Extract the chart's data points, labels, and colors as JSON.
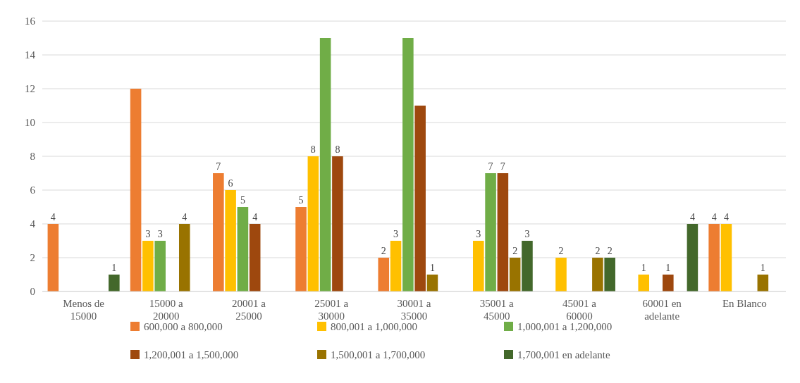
{
  "chart_data": {
    "type": "bar",
    "categories": [
      "Menos de 15000",
      "15000 a 20000",
      "20001 a 25000",
      "25001 a 30000",
      "30001 a 35000",
      "35001 a 45000",
      "45001 a 60000",
      "60001 en adelante",
      "En Blanco"
    ],
    "series": [
      {
        "name": "600,000 a 800,000",
        "color": "#ed7d31",
        "values": [
          4,
          12,
          7,
          5,
          2,
          null,
          null,
          null,
          4
        ],
        "value_labels": [
          "4",
          null,
          "7",
          "5",
          "2",
          null,
          null,
          null,
          "4"
        ]
      },
      {
        "name": "800,001 a 1,000,000",
        "color": "#ffc000",
        "values": [
          null,
          3,
          6,
          8,
          3,
          3,
          2,
          1,
          4
        ],
        "value_labels": [
          null,
          "3",
          "6",
          "8",
          "3",
          "3",
          "2",
          "1",
          "4"
        ]
      },
      {
        "name": "1,000,001 a 1,200,000",
        "color": "#70ad47",
        "values": [
          null,
          3,
          5,
          15,
          15,
          7,
          null,
          null,
          null
        ],
        "value_labels": [
          null,
          "3",
          "5",
          null,
          null,
          "7",
          null,
          null,
          null
        ]
      },
      {
        "name": "1,200,001 a 1,500,000",
        "color": "#9e480e",
        "values": [
          null,
          null,
          4,
          8,
          11,
          7,
          null,
          1,
          null
        ],
        "value_labels": [
          null,
          null,
          "4",
          "8",
          null,
          "7",
          null,
          "1",
          null
        ]
      },
      {
        "name": "1,500,001 a 1,700,000",
        "color": "#997300",
        "values": [
          null,
          4,
          null,
          null,
          1,
          2,
          2,
          null,
          1
        ],
        "value_labels": [
          null,
          "4",
          null,
          null,
          "1",
          "2",
          "2",
          null,
          "1"
        ]
      },
      {
        "name": "1,700,001 en adelante",
        "color": "#43682b",
        "values": [
          1,
          null,
          null,
          null,
          null,
          3,
          2,
          4,
          null
        ],
        "value_labels": [
          "1",
          null,
          null,
          null,
          null,
          "3",
          "2",
          "4",
          null
        ]
      }
    ],
    "ylim": [
      0,
      16
    ],
    "yticks": [
      0,
      2,
      4,
      6,
      8,
      10,
      12,
      14,
      16
    ],
    "grid": "y",
    "legend": "bottom"
  }
}
